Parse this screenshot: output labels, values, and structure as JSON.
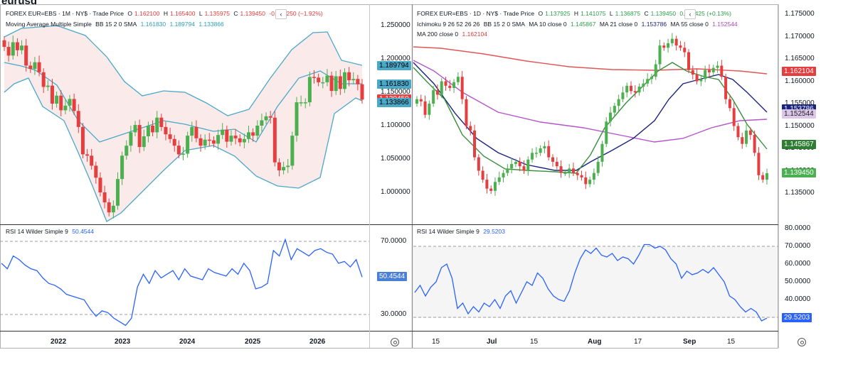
{
  "page_title": "eurusd",
  "left": {
    "header": {
      "symbol": "FOREX EUR=EBS · 1M · NY$ · Trade Price",
      "o_label": "O",
      "o": "1.162100",
      "h_label": "H",
      "h": "1.165400",
      "l_label": "L",
      "l": "1.135975",
      "c_label": "C",
      "c": "1.139450",
      "change": "-0.022250 (−1.92%)",
      "study": "Moving Average Multiple Simple",
      "bb_label": "BB 15 2 0 SMA",
      "bb_mid": "1.161830",
      "bb_upper": "1.189794",
      "bb_lower": "1.133866"
    },
    "rsi_header": {
      "label": "RSI 14 Wilder Simple 9",
      "value": "50.4544"
    },
    "price_ticks": [
      "1.250000",
      "1.200000",
      "1.150000",
      "1.100000",
      "1.050000",
      "1.000000"
    ],
    "rsi_ticks": [
      "70.0000",
      "50.0000",
      "30.0000"
    ],
    "x_ticks": [
      "2022",
      "2023",
      "2024",
      "2025",
      "2026"
    ],
    "badges": [
      "1.189794",
      "1.161830",
      "1.139450",
      "1.133866"
    ],
    "rsi_badge": "50.4544"
  },
  "right": {
    "header": {
      "symbol": "FOREX EUR=EBS · 1D · NY$ · Trade Price",
      "o_label": "O",
      "o": "1.137925",
      "h_label": "H",
      "h": "1.141075",
      "l_label": "L",
      "l": "1.136875",
      "c_label": "C",
      "c": "1.139450",
      "change": "0.001425 (+0.13%)",
      "ichimoku": "Ichimoku 9 26 52 26 26",
      "bb_label": "BB 15 2 0 SMA",
      "bb_value": "1.145867",
      "ma10_label": "MA 10 close 0",
      "ma10": "1.145867",
      "ma21_label": "MA 21 close 0",
      "ma21": "1.153786",
      "ma55_label": "MA 55 close 0",
      "ma55": "1.152544",
      "ma200_label": "MA 200 close 0",
      "ma200": "1.162104"
    },
    "rsi_header": {
      "label": "RSI 14 Wilder Simple 9",
      "value": "29.5203"
    },
    "price_ticks": [
      "1.175000",
      "1.170000",
      "1.165000",
      "1.160000",
      "1.155000",
      "1.150000",
      "1.145000",
      "1.140000",
      "1.135000"
    ],
    "rsi_ticks": [
      "80.0000",
      "70.0000",
      "60.0000",
      "50.0000",
      "40.0000",
      "30.0000"
    ],
    "x_ticks": [
      "15",
      "Jul",
      "15",
      "Aug",
      "17",
      "Sep",
      "15"
    ],
    "badges": [
      "1.162104",
      "1.153786",
      "1.152544",
      "1.145867",
      "1.139450"
    ],
    "rsi_badge": "29.5203"
  },
  "colors": {
    "up": "#4caf50",
    "down": "#e53e3e",
    "bb": "#4aa8c8",
    "bb_fill": "#fbeaea",
    "ma10": "#388e3c",
    "ma21": "#1a237e",
    "ma55": "#b455c8",
    "ma200": "#e05555",
    "rsi": "#2962ff",
    "grid_dash": "#9e9e9e"
  },
  "chart_data": [
    {
      "type": "candlestick",
      "title": "FOREX EUR=EBS · 1M · NY$ · Trade Price",
      "timeframe": "1M",
      "x_ticks": [
        "2022",
        "2023",
        "2024",
        "2025",
        "2026"
      ],
      "ylim": [
        0.955,
        1.285
      ],
      "close_series": [
        1.218,
        1.205,
        1.225,
        1.213,
        1.22,
        1.19,
        1.185,
        1.195,
        1.18,
        1.158,
        1.16,
        1.133,
        1.145,
        1.123,
        1.13,
        1.14,
        1.122,
        1.098,
        1.057,
        1.055,
        1.04,
        1.022,
        1.0,
        0.985,
        0.97,
        0.98,
        1.02,
        1.055,
        1.07,
        1.09,
        1.101,
        1.068,
        1.084,
        1.1,
        1.09,
        1.112,
        1.098,
        1.087,
        1.08,
        1.07,
        1.057,
        1.058,
        1.085,
        1.098,
        1.081,
        1.07,
        1.079,
        1.078,
        1.073,
        1.086,
        1.094,
        1.076,
        1.085,
        1.081,
        1.075,
        1.08,
        1.09,
        1.085,
        1.1,
        1.108,
        1.114,
        1.112,
        1.045,
        1.033,
        1.038,
        1.04,
        1.085,
        1.135,
        1.135,
        1.135,
        1.173,
        1.172,
        1.165,
        1.165,
        1.175,
        1.152,
        1.174,
        1.155,
        1.18,
        1.168,
        1.17,
        1.162,
        1.139
      ],
      "bollinger": {
        "upper": 1.189794,
        "middle": 1.16183,
        "lower": 1.133866
      },
      "last": 1.13945,
      "rsi": {
        "label": "RSI 14 Wilder Simple 9",
        "ylim": [
          20,
          78
        ],
        "levels": [
          70,
          30
        ],
        "values": [
          58,
          55,
          62,
          60,
          57,
          55,
          54,
          50,
          47,
          46,
          44,
          41,
          40,
          39,
          38,
          33,
          29,
          32,
          31,
          28,
          26,
          24,
          28,
          45,
          52,
          47,
          54,
          50,
          52,
          54,
          49,
          55,
          51,
          50,
          49,
          55,
          53,
          52,
          51,
          55,
          52,
          58,
          54,
          44,
          45,
          47,
          65,
          62,
          71,
          60,
          66,
          64,
          62,
          65,
          66,
          64,
          63,
          58,
          59,
          56,
          60,
          50.4544
        ],
        "last": 50.4544
      }
    },
    {
      "type": "candlestick",
      "title": "FOREX EUR=EBS · 1D · NY$ · Trade Price",
      "timeframe": "1D",
      "x_ticks": [
        "15",
        "Jul",
        "15",
        "Aug",
        "17",
        "Sep",
        "15"
      ],
      "ylim": [
        1.1305,
        1.1765
      ],
      "close_series": [
        1.156,
        1.1555,
        1.1525,
        1.155,
        1.158,
        1.157,
        1.16,
        1.159,
        1.1585,
        1.1598,
        1.161,
        1.156,
        1.15,
        1.149,
        1.143,
        1.14,
        1.138,
        1.136,
        1.1355,
        1.1375,
        1.1385,
        1.1395,
        1.1405,
        1.1415,
        1.142,
        1.141,
        1.14,
        1.1425,
        1.144,
        1.144,
        1.145,
        1.1455,
        1.143,
        1.142,
        1.141,
        1.1395,
        1.1395,
        1.1405,
        1.1395,
        1.139,
        1.1385,
        1.137,
        1.138,
        1.1395,
        1.142,
        1.146,
        1.151,
        1.153,
        1.1545,
        1.156,
        1.1575,
        1.159,
        1.1578,
        1.1575,
        1.1588,
        1.1595,
        1.1605,
        1.161,
        1.1638,
        1.168,
        1.1675,
        1.1685,
        1.1695,
        1.168,
        1.1675,
        1.1665,
        1.1625,
        1.1615,
        1.16,
        1.1605,
        1.1625,
        1.162,
        1.163,
        1.1635,
        1.161,
        1.156,
        1.154,
        1.15,
        1.1475,
        1.146,
        1.149,
        1.148,
        1.144,
        1.139,
        1.138,
        1.13945
      ],
      "moving_averages": [
        {
          "name": "MA 10 close 0",
          "last": 1.145867
        },
        {
          "name": "MA 21 close 0",
          "last": 1.153786
        },
        {
          "name": "MA 55 close 0",
          "last": 1.152544
        },
        {
          "name": "MA 200 close 0",
          "last": 1.162104
        }
      ],
      "last": 1.13945,
      "rsi": {
        "label": "RSI 14 Wilder Simple 9",
        "ylim": [
          23,
          82
        ],
        "levels": [
          70,
          30
        ],
        "values": [
          44,
          48,
          42,
          47,
          50,
          58,
          60,
          52,
          35,
          38,
          32,
          36,
          33,
          38,
          36,
          40,
          35,
          42,
          45,
          38,
          44,
          50,
          48,
          55,
          52,
          46,
          42,
          40,
          39,
          45,
          55,
          63,
          68,
          66,
          69,
          65,
          64,
          66,
          62,
          64,
          63,
          60,
          65,
          71,
          71,
          69,
          70,
          68,
          63,
          60,
          52,
          56,
          54,
          55,
          57,
          55,
          58,
          54,
          50,
          42,
          40,
          36,
          33,
          35,
          33,
          28,
          29.5203
        ],
        "last": 29.5203
      }
    }
  ]
}
